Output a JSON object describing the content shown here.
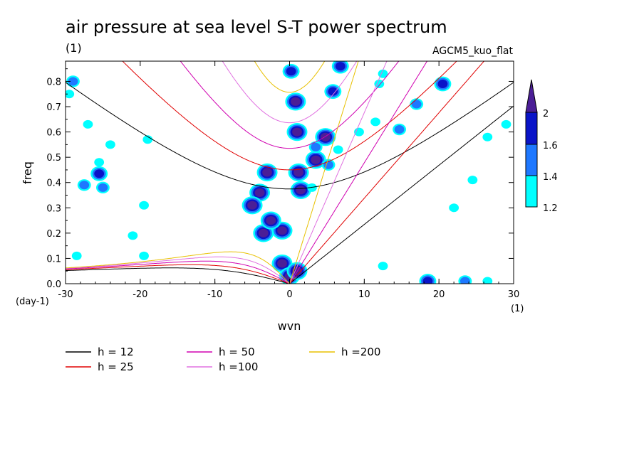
{
  "chart_data": {
    "type": "line",
    "title": "air pressure at sea level S-T power spectrum",
    "subtitle": "(1)",
    "model_label": "AGCM5_kuo_flat",
    "xlabel": "wvn",
    "x_unit": "(1)",
    "ylabel": "freq",
    "y_unit": "(day-1)",
    "xlim": [
      -30,
      30
    ],
    "ylim": [
      0,
      0.88
    ],
    "x_ticks": [
      "-30",
      "-20",
      "-10",
      "0",
      "10",
      "20",
      "30"
    ],
    "y_ticks": [
      "0.0",
      "0.1",
      "0.2",
      "0.3",
      "0.4",
      "0.5",
      "0.6",
      "0.7",
      "0.8"
    ],
    "colorbar": {
      "levels": [
        "1.2",
        "1.4",
        "1.6",
        "2"
      ],
      "colors": [
        "#00ffff",
        "#1e78ff",
        "#0a14c8",
        "#4b1e96"
      ]
    },
    "series": [
      {
        "name": "h = 12",
        "color": "#000000",
        "equivalent_depth": 12
      },
      {
        "name": "h = 25",
        "color": "#e00000",
        "equivalent_depth": 25
      },
      {
        "name": "h = 50",
        "color": "#d000b0",
        "equivalent_depth": 50
      },
      {
        "name": "h =100",
        "color": "#e070e0",
        "equivalent_depth": 100
      },
      {
        "name": "h =200",
        "color": "#e8c000",
        "equivalent_depth": 200
      }
    ],
    "contour_regions": [
      {
        "x": -29.5,
        "y": 0.75,
        "level": 1.2
      },
      {
        "x": -29,
        "y": 0.8,
        "level": 1.4
      },
      {
        "x": -27.5,
        "y": 0.39,
        "level": 1.4
      },
      {
        "x": -25,
        "y": 0.38,
        "level": 1.4
      },
      {
        "x": -27,
        "y": 0.63,
        "level": 1.2
      },
      {
        "x": -25.5,
        "y": 0.48,
        "level": 1.2
      },
      {
        "x": -25.5,
        "y": 0.435,
        "level": 1.6
      },
      {
        "x": -24,
        "y": 0.55,
        "level": 1.2
      },
      {
        "x": -19.5,
        "y": 0.31,
        "level": 1.2
      },
      {
        "x": -21,
        "y": 0.19,
        "level": 1.2
      },
      {
        "x": -19,
        "y": 0.57,
        "level": 1.2
      },
      {
        "x": -19.5,
        "y": 0.11,
        "level": 1.2
      },
      {
        "x": -28.5,
        "y": 0.11,
        "level": 1.2
      },
      {
        "x": -3,
        "y": 0.44,
        "level": 2
      },
      {
        "x": -4,
        "y": 0.36,
        "level": 2
      },
      {
        "x": -5,
        "y": 0.31,
        "level": 2
      },
      {
        "x": -3.5,
        "y": 0.2,
        "level": 2
      },
      {
        "x": -1,
        "y": 0.21,
        "level": 2
      },
      {
        "x": -2.5,
        "y": 0.25,
        "level": 2
      },
      {
        "x": -1,
        "y": 0.08,
        "level": 2
      },
      {
        "x": 0,
        "y": 0.03,
        "level": 2
      },
      {
        "x": 1,
        "y": 0.05,
        "level": 2
      },
      {
        "x": 0.8,
        "y": 0.72,
        "level": 2
      },
      {
        "x": 1,
        "y": 0.6,
        "level": 2
      },
      {
        "x": 1.2,
        "y": 0.44,
        "level": 2
      },
      {
        "x": 1.5,
        "y": 0.37,
        "level": 2
      },
      {
        "x": 3.5,
        "y": 0.49,
        "level": 2
      },
      {
        "x": 4.8,
        "y": 0.58,
        "level": 2
      },
      {
        "x": 3.5,
        "y": 0.54,
        "level": 1.4
      },
      {
        "x": 3,
        "y": 0.38,
        "level": 1.2
      },
      {
        "x": 5.8,
        "y": 0.76,
        "level": 1.6
      },
      {
        "x": 6.8,
        "y": 0.86,
        "level": 1.6
      },
      {
        "x": 0.2,
        "y": 0.84,
        "level": 1.6
      },
      {
        "x": 5.2,
        "y": 0.47,
        "level": 1.4
      },
      {
        "x": 6.5,
        "y": 0.53,
        "level": 1.2
      },
      {
        "x": 9.3,
        "y": 0.6,
        "level": 1.2
      },
      {
        "x": 11.5,
        "y": 0.64,
        "level": 1.2
      },
      {
        "x": 12.5,
        "y": 0.83,
        "level": 1.2
      },
      {
        "x": 14.7,
        "y": 0.61,
        "level": 1.4
      },
      {
        "x": 20.5,
        "y": 0.79,
        "level": 1.6
      },
      {
        "x": 17,
        "y": 0.71,
        "level": 1.4
      },
      {
        "x": 18.5,
        "y": 0.01,
        "level": 1.6
      },
      {
        "x": 23.5,
        "y": 0.01,
        "level": 1.4
      },
      {
        "x": 26.5,
        "y": 0.01,
        "level": 1.2
      },
      {
        "x": 26.5,
        "y": 0.58,
        "level": 1.2
      },
      {
        "x": 29,
        "y": 0.63,
        "level": 1.2
      },
      {
        "x": 24.5,
        "y": 0.41,
        "level": 1.2
      },
      {
        "x": 22,
        "y": 0.3,
        "level": 1.2
      },
      {
        "x": 12,
        "y": 0.79,
        "level": 1.2
      },
      {
        "x": 12.5,
        "y": 0.07,
        "level": 1.2
      }
    ]
  }
}
